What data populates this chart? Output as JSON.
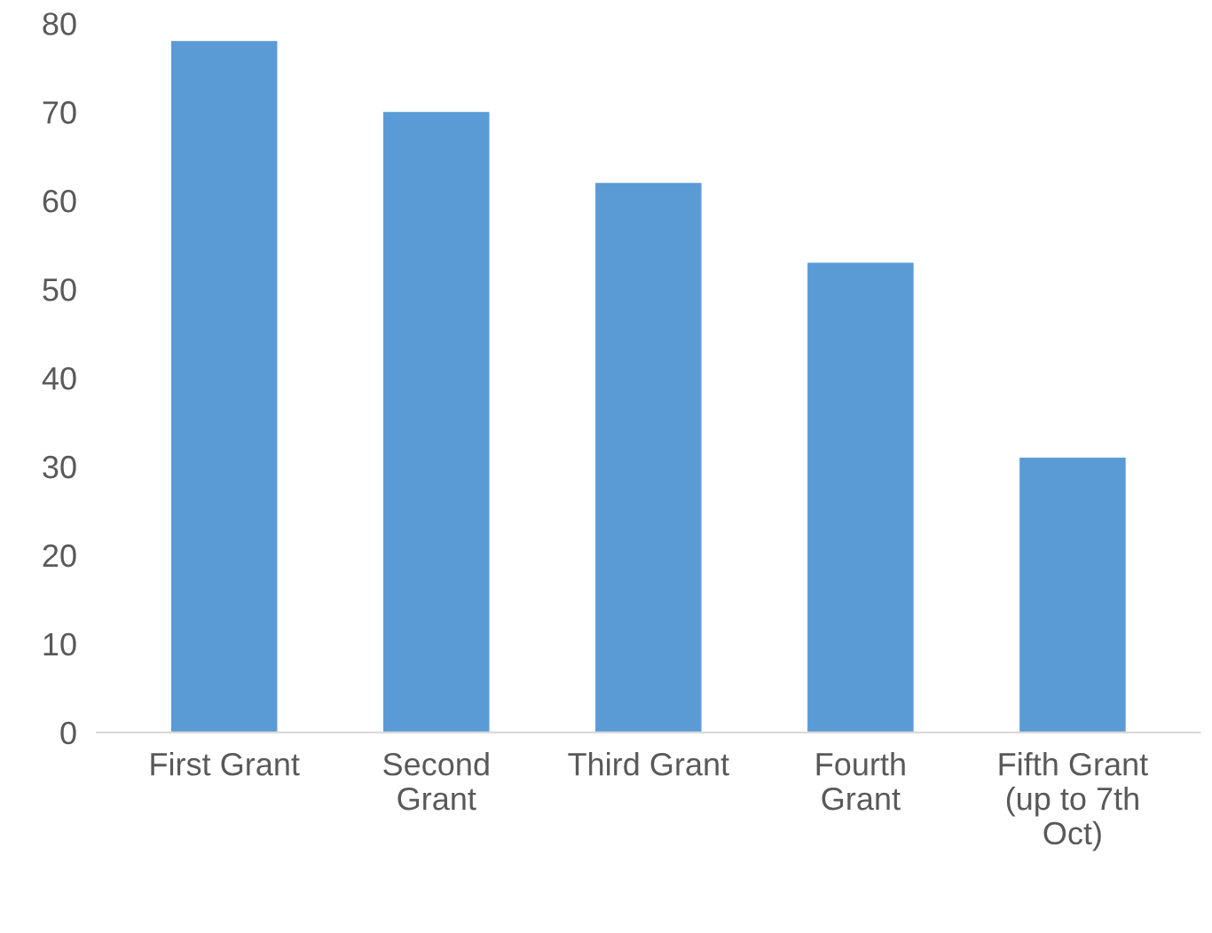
{
  "chart_data": {
    "type": "bar",
    "categories": [
      "First Grant",
      "Second Grant",
      "Third Grant",
      "Fourth Grant",
      "Fifth Grant (up to 7th Oct)"
    ],
    "values": [
      78,
      70,
      62,
      53,
      31
    ],
    "color": "#5b9bd5",
    "ylim": [
      0,
      80
    ],
    "yticks": [
      0,
      10,
      20,
      30,
      40,
      50,
      60,
      70,
      80
    ],
    "grid": false,
    "legend": false
  }
}
